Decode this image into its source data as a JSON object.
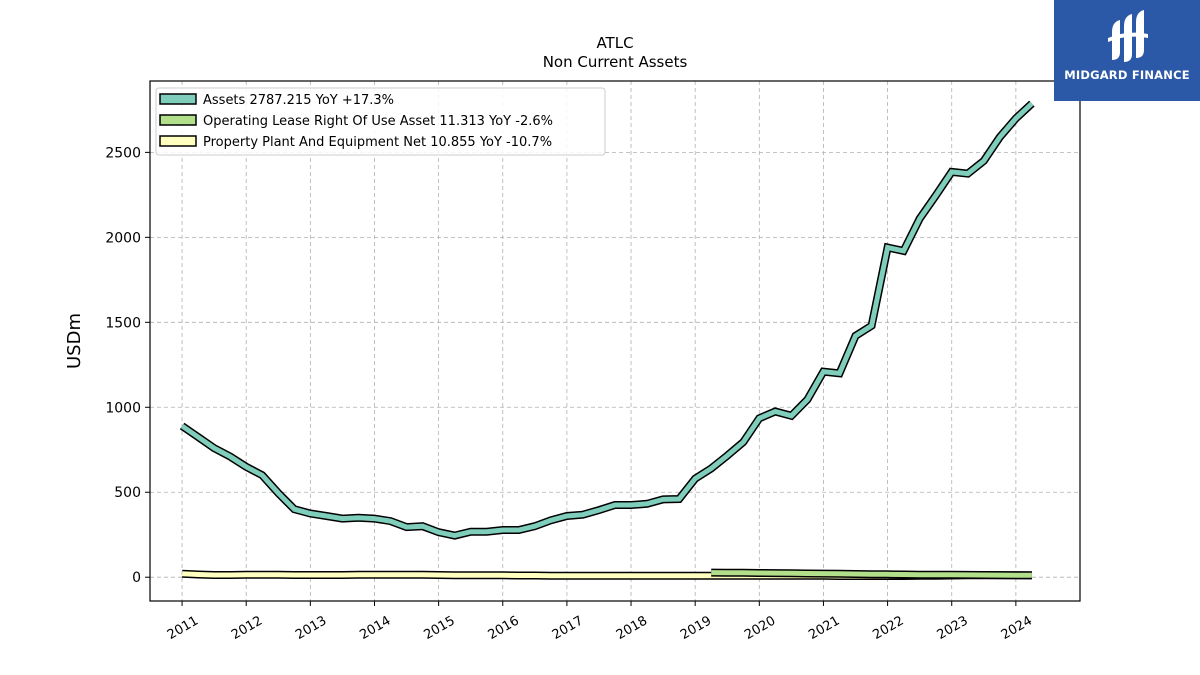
{
  "chart_data": {
    "type": "line",
    "title": "ATLC",
    "subtitle": "Non Current  Assets",
    "ylabel": "USDm",
    "xlim": [
      2010.5,
      2025.0
    ],
    "ylim": [
      -140,
      2920
    ],
    "yticks": [
      0,
      500,
      1000,
      1500,
      2000,
      2500
    ],
    "xticks": [
      2011,
      2012,
      2013,
      2014,
      2015,
      2016,
      2017,
      2018,
      2019,
      2020,
      2021,
      2022,
      2023,
      2024
    ],
    "grid": true,
    "legend_position": "top-left",
    "series": [
      {
        "name": "Assets",
        "legend": "Assets  2787.215 YoY +17.3%",
        "color": "#7fcdbb",
        "x": [
          2011.0,
          2011.25,
          2011.5,
          2011.75,
          2012.0,
          2012.25,
          2012.5,
          2012.75,
          2013.0,
          2013.25,
          2013.5,
          2013.75,
          2014.0,
          2014.25,
          2014.5,
          2014.75,
          2015.0,
          2015.25,
          2015.5,
          2015.75,
          2016.0,
          2016.25,
          2016.5,
          2016.75,
          2017.0,
          2017.25,
          2017.5,
          2017.75,
          2018.0,
          2018.25,
          2018.5,
          2018.75,
          2019.0,
          2019.25,
          2019.5,
          2019.75,
          2020.0,
          2020.25,
          2020.5,
          2020.75,
          2021.0,
          2021.25,
          2021.5,
          2021.75,
          2022.0,
          2022.25,
          2022.5,
          2022.75,
          2023.0,
          2023.25,
          2023.5,
          2023.75,
          2024.0,
          2024.25
        ],
        "values": [
          890,
          825,
          760,
          710,
          650,
          600,
          495,
          400,
          375,
          360,
          345,
          350,
          345,
          330,
          295,
          300,
          265,
          245,
          268,
          268,
          278,
          278,
          300,
          335,
          360,
          368,
          395,
          425,
          425,
          432,
          458,
          460,
          580,
          640,
          715,
          795,
          935,
          975,
          950,
          1045,
          1210,
          1200,
          1420,
          1480,
          1940,
          1920,
          2110,
          2245,
          2385,
          2375,
          2450,
          2590,
          2700,
          2787
        ]
      },
      {
        "name": "Operating Lease Right Of Use Asset",
        "legend": "Operating Lease Right Of Use Asset  11.313 YoY -2.6%",
        "color": "#b2df8a",
        "x": [
          2019.25,
          2019.5,
          2019.75,
          2020.0,
          2020.25,
          2020.5,
          2020.75,
          2021.0,
          2021.25,
          2021.5,
          2021.75,
          2022.0,
          2022.25,
          2022.5,
          2022.75,
          2023.0,
          2023.25,
          2023.5,
          2023.75,
          2024.0,
          2024.25
        ],
        "values": [
          27,
          26.5,
          26,
          25,
          24,
          23,
          22,
          21,
          20,
          19,
          18,
          17,
          16,
          15,
          14.5,
          14,
          13.5,
          13,
          12.5,
          12,
          11.3
        ]
      },
      {
        "name": "Property Plant And Equipment Net",
        "legend": "Property Plant And Equipment Net  10.855 YoY -10.7%",
        "color": "#ffffbf",
        "x": [
          2011.0,
          2011.25,
          2011.5,
          2011.75,
          2012.0,
          2012.25,
          2012.5,
          2012.75,
          2013.0,
          2013.25,
          2013.5,
          2013.75,
          2014.0,
          2014.25,
          2014.5,
          2014.75,
          2015.0,
          2015.25,
          2015.5,
          2015.75,
          2016.0,
          2016.25,
          2016.5,
          2016.75,
          2017.0,
          2017.25,
          2017.5,
          2017.75,
          2018.0,
          2018.25,
          2018.5,
          2018.75,
          2019.0,
          2019.25,
          2019.5,
          2019.75,
          2020.0,
          2020.25,
          2020.5,
          2020.75,
          2021.0,
          2021.25,
          2021.5,
          2021.75,
          2022.0,
          2022.25,
          2022.5,
          2022.75,
          2023.0,
          2023.25,
          2023.5,
          2023.75,
          2024.0,
          2024.25
        ],
        "values": [
          20,
          16,
          13,
          13,
          14,
          14,
          14,
          13,
          13,
          13,
          13,
          14,
          14,
          15,
          15,
          15,
          13,
          12,
          12,
          11,
          11,
          10,
          10,
          9,
          9,
          9,
          9,
          8,
          8,
          8,
          8,
          8,
          8,
          8,
          9,
          9,
          9,
          9,
          9,
          8,
          8,
          7,
          7,
          7,
          7,
          7,
          8,
          8,
          10,
          11,
          12,
          12,
          12,
          10.9
        ]
      }
    ]
  },
  "logo": {
    "text": "MIDGARD FINANCE",
    "background": "#2c58a8"
  }
}
